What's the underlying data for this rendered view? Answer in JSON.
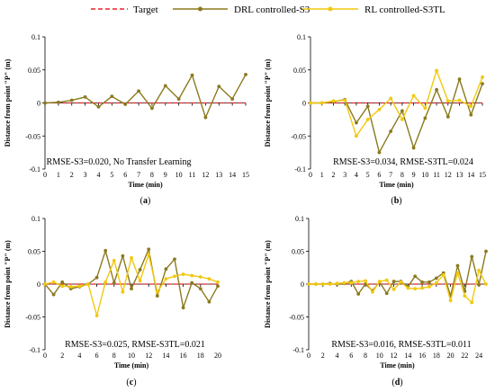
{
  "colors": {
    "target": "#e8242b",
    "drl": "#8b7a1e",
    "rl": "#f2c80f"
  },
  "legend": [
    {
      "label": "Target",
      "style": "dashed",
      "color": "#e8242b"
    },
    {
      "label": "DRL controlled-S3",
      "style": "line-dot",
      "color": "#8b7a1e"
    },
    {
      "label": "RL controlled-S3TL",
      "style": "line-dot",
      "color": "#f2c80f"
    }
  ],
  "chart_data": [
    {
      "type": "line",
      "panel_label": "a",
      "ylabel": "Distance from point \"P\" (m)",
      "xlabel": "Time (min)",
      "ylim": [
        -0.1,
        0.1
      ],
      "yticks": [
        "0.1",
        "0.05",
        "0",
        "-0.05",
        "-0.1"
      ],
      "xlim": [
        0,
        15
      ],
      "xticks": [
        0,
        1,
        2,
        3,
        4,
        5,
        6,
        7,
        8,
        9,
        10,
        11,
        12,
        13,
        14,
        15
      ],
      "annotation": "RMSE-S3=0.020, No Transfer Learning",
      "series": [
        {
          "name": "Target",
          "x": [
            0,
            15
          ],
          "y": [
            0,
            0
          ]
        },
        {
          "name": "DRL controlled-S3",
          "x": [
            0,
            1,
            2,
            3,
            4,
            5,
            6,
            7,
            8,
            9,
            10,
            11,
            12,
            13,
            14,
            15
          ],
          "y": [
            0,
            0.001,
            0.004,
            0.009,
            -0.006,
            0.01,
            -0.002,
            0.018,
            -0.008,
            0.026,
            0.006,
            0.042,
            -0.022,
            0.025,
            0.006,
            0.043
          ]
        }
      ]
    },
    {
      "type": "line",
      "panel_label": "b",
      "ylabel": "Distance from point \"P\" (m)",
      "xlabel": "Time (min)",
      "ylim": [
        -0.1,
        0.1
      ],
      "yticks": [
        "0.1",
        "0.05",
        "0",
        "-0.05",
        "-0.1"
      ],
      "xlim": [
        0,
        15
      ],
      "xticks": [
        0,
        1,
        2,
        3,
        4,
        5,
        6,
        7,
        8,
        9,
        10,
        11,
        12,
        13,
        14,
        15
      ],
      "annotation": "RMSE-S3=0.034, RMSE-S3TL=0.024",
      "series": [
        {
          "name": "Target",
          "x": [
            0,
            15
          ],
          "y": [
            0,
            0
          ]
        },
        {
          "name": "DRL controlled-S3",
          "x": [
            0,
            1,
            2,
            3,
            4,
            5,
            6,
            7,
            8,
            9,
            10,
            11,
            12,
            13,
            14,
            15
          ],
          "y": [
            0,
            0,
            0.002,
            0.005,
            -0.03,
            -0.005,
            -0.075,
            -0.043,
            -0.012,
            -0.068,
            -0.023,
            0.02,
            -0.021,
            0.036,
            -0.018,
            0.029
          ]
        },
        {
          "name": "RL controlled-S3TL",
          "x": [
            0,
            1,
            2,
            3,
            4,
            5,
            6,
            7,
            8,
            9,
            10,
            11,
            12,
            13,
            14,
            15
          ],
          "y": [
            0,
            0,
            0.003,
            0.004,
            -0.05,
            -0.025,
            -0.01,
            0.007,
            -0.025,
            0.011,
            -0.008,
            0.049,
            0.003,
            0.004,
            -0.005,
            0.039
          ]
        }
      ]
    },
    {
      "type": "line",
      "panel_label": "c",
      "ylabel": "Distance from point \"P\" (m)",
      "xlabel": "Time (min)",
      "ylim": [
        -0.1,
        0.1
      ],
      "yticks": [
        "0.1",
        "0.05",
        "0",
        "-0.05",
        "-0.1"
      ],
      "xlim": [
        0,
        20
      ],
      "xticks": [
        0,
        2,
        4,
        6,
        8,
        10,
        12,
        14,
        16,
        18,
        20
      ],
      "annotation": "RMSE-S3=0.025, RMSE-S3TL=0.021",
      "series": [
        {
          "name": "Target",
          "x": [
            0,
            20
          ],
          "y": [
            0,
            0
          ]
        },
        {
          "name": "DRL controlled-S3",
          "x": [
            0,
            1,
            2,
            3,
            4,
            5,
            6,
            7,
            8,
            9,
            10,
            11,
            12,
            13,
            14,
            15,
            16,
            17,
            18,
            19,
            20
          ],
          "y": [
            0,
            -0.016,
            0.003,
            -0.007,
            -0.004,
            0,
            0.01,
            0.051,
            0.002,
            0.043,
            -0.007,
            0.022,
            0.053,
            -0.018,
            0.023,
            0.038,
            -0.036,
            0.002,
            -0.007,
            -0.027,
            -0.003
          ]
        },
        {
          "name": "RL controlled-S3TL",
          "x": [
            0,
            1,
            2,
            3,
            4,
            5,
            6,
            7,
            8,
            9,
            10,
            11,
            12,
            13,
            14,
            15,
            16,
            17,
            18,
            19,
            20
          ],
          "y": [
            0,
            0.003,
            -0.003,
            -0.004,
            -0.003,
            0,
            -0.048,
            0.003,
            0.036,
            -0.012,
            0.04,
            0.005,
            0.045,
            -0.012,
            0.008,
            0.012,
            0.015,
            0.013,
            0.011,
            0.008,
            0.003
          ]
        }
      ]
    },
    {
      "type": "line",
      "panel_label": "d",
      "ylabel": "Distance from point \"P\" (m)",
      "xlabel": "Time (min)",
      "ylim": [
        -0.1,
        0.1
      ],
      "yticks": [
        "0.1",
        "0.05",
        "0",
        "-0.05",
        "-0.1"
      ],
      "xlim": [
        0,
        25
      ],
      "xticks": [
        0,
        2,
        4,
        6,
        8,
        10,
        12,
        14,
        16,
        18,
        20,
        22,
        24
      ],
      "annotation": "RMSE-S3=0.016, RMSE-S3TL=0.011",
      "series": [
        {
          "name": "Target",
          "x": [
            0,
            25
          ],
          "y": [
            0,
            0
          ]
        },
        {
          "name": "DRL controlled-S3",
          "x": [
            0,
            1,
            2,
            3,
            4,
            5,
            6,
            7,
            8,
            9,
            10,
            11,
            12,
            13,
            14,
            15,
            16,
            17,
            18,
            19,
            20,
            21,
            22,
            23,
            24,
            25
          ],
          "y": [
            0,
            0,
            0,
            0.001,
            0,
            0.001,
            0.004,
            -0.015,
            0,
            -0.01,
            0.003,
            -0.014,
            0.004,
            0.004,
            -0.004,
            0.012,
            0.003,
            0.003,
            0.009,
            0.017,
            -0.018,
            0.028,
            -0.011,
            0.042,
            -0.001,
            0.05
          ]
        },
        {
          "name": "RL controlled-S3TL",
          "x": [
            0,
            1,
            2,
            3,
            4,
            5,
            6,
            7,
            8,
            9,
            10,
            11,
            12,
            13,
            14,
            15,
            16,
            17,
            18,
            19,
            20,
            21,
            22,
            23,
            24,
            25
          ],
          "y": [
            0,
            0,
            0,
            0,
            0.001,
            0.002,
            0.002,
            0.004,
            0.005,
            -0.012,
            0.004,
            0.006,
            -0.008,
            0.003,
            -0.006,
            -0.007,
            -0.006,
            -0.004,
            0.002,
            0.014,
            -0.025,
            0.017,
            -0.018,
            -0.028,
            0.021,
            0
          ]
        }
      ]
    }
  ]
}
